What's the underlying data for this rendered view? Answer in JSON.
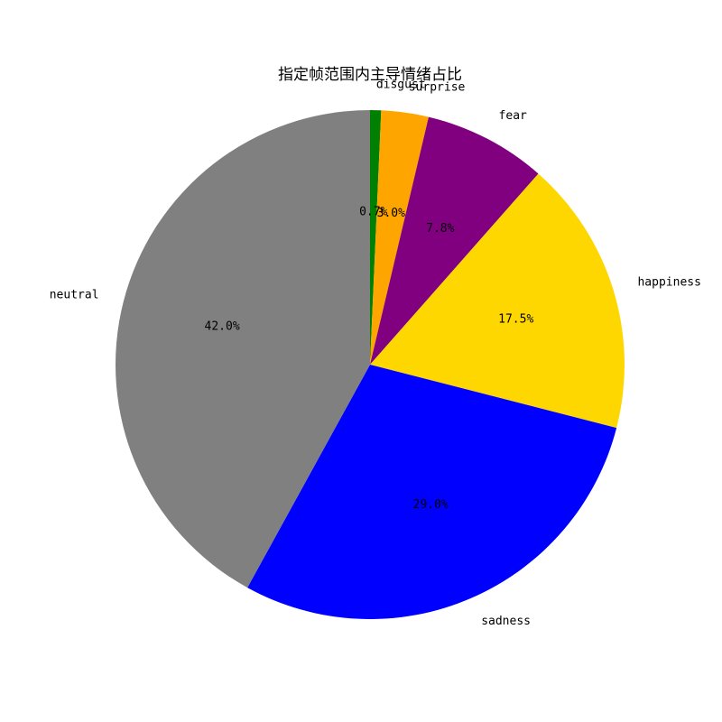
{
  "chart_data": {
    "type": "pie",
    "title": "指定帧范围内主导情绪占比",
    "start_angle_deg": 90,
    "direction": "clockwise",
    "slices": [
      {
        "label": "disgust",
        "value": 0.7,
        "pct_label": "0.7%",
        "color": "#008000"
      },
      {
        "label": "surprise",
        "value": 3.0,
        "pct_label": "3.0%",
        "color": "#FFA500"
      },
      {
        "label": "fear",
        "value": 7.8,
        "pct_label": "7.8%",
        "color": "#800080"
      },
      {
        "label": "happiness",
        "value": 17.5,
        "pct_label": "17.5%",
        "color": "#FFD700"
      },
      {
        "label": "sadness",
        "value": 29.0,
        "pct_label": "29.0%",
        "color": "#0000FF"
      },
      {
        "label": "neutral",
        "value": 42.0,
        "pct_label": "42.0%",
        "color": "#808080"
      }
    ]
  }
}
